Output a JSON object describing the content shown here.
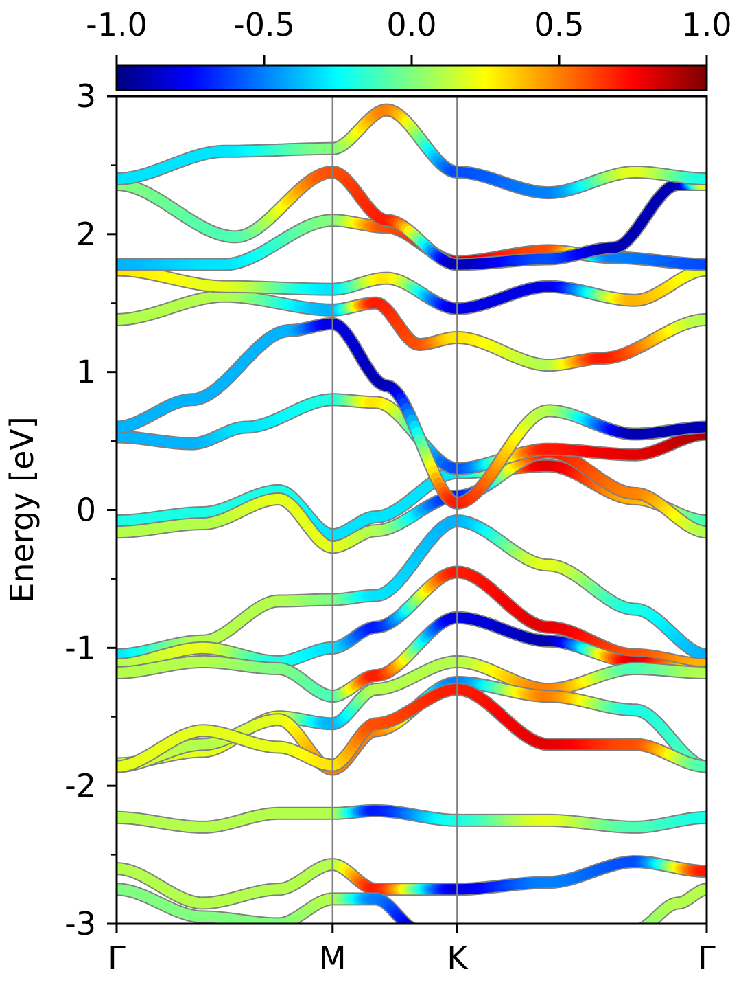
{
  "chart_data": {
    "type": "line",
    "title": "",
    "xlabel": "",
    "ylabel": "Energy [eV]",
    "ylim": [
      -3,
      3
    ],
    "x_ticks": [
      {
        "label": "Γ",
        "k": 0.0
      },
      {
        "label": "M",
        "k": 1.0
      },
      {
        "label": "K",
        "k": 1.577
      },
      {
        "label": "Γ",
        "k": 2.732
      }
    ],
    "y_ticks": [
      {
        "value": 3,
        "label": "3"
      },
      {
        "value": 2,
        "label": "2"
      },
      {
        "value": 1,
        "label": "1"
      },
      {
        "value": 0,
        "label": "0"
      },
      {
        "value": -1,
        "label": "-1"
      },
      {
        "value": -2,
        "label": "-2"
      },
      {
        "value": -3,
        "label": "-3"
      }
    ],
    "y_minor_ticks": [
      2.5,
      1.5,
      0.5,
      -0.5,
      -1.5,
      -2.5
    ],
    "colorbar": {
      "colormap": "jet",
      "range": [
        -1.0,
        1.0
      ],
      "ticks": [
        {
          "value": -1.0,
          "label": "-1.0"
        },
        {
          "value": -0.5,
          "label": "-0.5"
        },
        {
          "value": 0.0,
          "label": "0.0"
        },
        {
          "value": 0.5,
          "label": "0.5"
        },
        {
          "value": 1.0,
          "label": "1.0"
        }
      ]
    },
    "bands": [
      {
        "k": [
          0,
          0.4,
          0.75,
          1.0,
          1.2,
          1.577,
          2.0,
          2.4,
          2.732
        ],
        "E": [
          -0.08,
          -0.02,
          0.14,
          -0.18,
          -0.05,
          0.27,
          0.32,
          0.08,
          -0.08
        ],
        "c": [
          -0.2,
          -0.2,
          -0.2,
          -0.3,
          -0.3,
          -0.3,
          0.8,
          0.4,
          -0.1
        ]
      },
      {
        "k": [
          0,
          0.4,
          0.75,
          1.0,
          1.2,
          1.577,
          2.0,
          2.4,
          2.732
        ],
        "E": [
          -0.16,
          -0.1,
          0.08,
          -0.27,
          -0.15,
          0.1,
          0.42,
          0.12,
          -0.16
        ],
        "c": [
          0.1,
          0.1,
          0.2,
          0.2,
          0.1,
          -0.7,
          0.7,
          0.5,
          0.1
        ]
      },
      {
        "k": [
          0,
          0.35,
          0.6,
          1.0,
          1.2,
          1.577,
          2.0,
          2.4,
          2.732
        ],
        "E": [
          0.53,
          0.48,
          0.6,
          0.8,
          0.78,
          0.3,
          0.44,
          0.4,
          0.55
        ],
        "c": [
          -0.4,
          -0.4,
          -0.3,
          -0.2,
          0.3,
          -0.6,
          0.7,
          0.8,
          0.9
        ]
      },
      {
        "k": [
          0,
          0.35,
          0.8,
          1.0,
          1.25,
          1.577,
          2.0,
          2.4,
          2.732
        ],
        "E": [
          0.6,
          0.8,
          1.3,
          1.35,
          0.9,
          0.05,
          0.72,
          0.55,
          0.6
        ],
        "c": [
          -0.4,
          -0.4,
          -0.4,
          -0.8,
          -0.9,
          0.7,
          0.1,
          -0.9,
          -0.9
        ]
      },
      {
        "k": [
          0,
          0.5,
          1.0,
          1.2,
          1.4,
          1.577,
          2.0,
          2.25,
          2.732
        ],
        "E": [
          1.38,
          1.55,
          1.45,
          1.5,
          1.2,
          1.25,
          1.05,
          1.1,
          1.38
        ],
        "c": [
          0.1,
          0.1,
          -0.4,
          0.7,
          0.6,
          0.3,
          0.1,
          0.7,
          0.1
        ]
      },
      {
        "k": [
          0,
          0.5,
          1.0,
          1.25,
          1.577,
          2.0,
          2.4,
          2.732
        ],
        "E": [
          1.74,
          1.62,
          1.6,
          1.68,
          1.46,
          1.62,
          1.52,
          1.74
        ],
        "c": [
          0.3,
          0.2,
          -0.3,
          0.3,
          -0.8,
          -0.8,
          0.4,
          0.2
        ]
      },
      {
        "k": [
          0,
          0.5,
          1.0,
          1.25,
          1.577,
          2.0,
          2.3,
          2.732
        ],
        "E": [
          1.78,
          1.78,
          2.1,
          2.05,
          1.8,
          1.88,
          1.83,
          1.78
        ],
        "c": [
          -0.4,
          -0.3,
          0.0,
          0.6,
          0.8,
          0.6,
          -0.5,
          -0.6
        ]
      },
      {
        "k": [
          0,
          0.55,
          1.0,
          1.25,
          1.577,
          2.0,
          2.3,
          2.6,
          2.732
        ],
        "E": [
          2.36,
          1.98,
          2.45,
          2.1,
          1.78,
          1.82,
          1.9,
          2.36,
          2.36
        ],
        "c": [
          0.0,
          -0.1,
          0.6,
          0.7,
          -0.9,
          -0.6,
          -0.9,
          -0.9,
          0.2
        ]
      },
      {
        "k": [
          0,
          0.5,
          1.0,
          1.25,
          1.577,
          2.0,
          2.4,
          2.732
        ],
        "E": [
          2.4,
          2.6,
          2.62,
          2.9,
          2.45,
          2.3,
          2.45,
          2.4
        ],
        "c": [
          -0.3,
          -0.3,
          0.0,
          0.5,
          -0.6,
          -0.5,
          0.2,
          -0.2
        ]
      },
      {
        "k": [
          0,
          0.4,
          0.75,
          1.0,
          1.2,
          1.577,
          2.0,
          2.4,
          2.732
        ],
        "E": [
          -1.05,
          -0.95,
          -0.66,
          -0.65,
          -0.62,
          -0.08,
          -0.4,
          -0.72,
          -1.05
        ],
        "c": [
          -0.3,
          0.1,
          0.1,
          0.0,
          -0.3,
          -0.4,
          0.2,
          -0.2,
          -0.4
        ]
      },
      {
        "k": [
          0,
          0.4,
          0.75,
          1.0,
          1.2,
          1.577,
          2.0,
          2.4,
          2.732
        ],
        "E": [
          -1.12,
          -1.0,
          -1.1,
          -1.0,
          -0.85,
          -0.45,
          -0.85,
          -1.05,
          -1.12
        ],
        "c": [
          0.1,
          0.2,
          -0.2,
          -0.3,
          -0.7,
          0.7,
          0.8,
          0.6,
          0.4
        ]
      },
      {
        "k": [
          0,
          0.4,
          0.75,
          1.0,
          1.2,
          1.577,
          2.0,
          2.4,
          2.732
        ],
        "E": [
          -1.18,
          -1.1,
          -1.15,
          -1.35,
          -1.2,
          -0.78,
          -0.95,
          -1.1,
          -1.18
        ],
        "c": [
          0.1,
          0.1,
          0.0,
          -0.1,
          0.7,
          -0.8,
          -0.9,
          0.8,
          0.2
        ]
      },
      {
        "k": [
          0,
          0.4,
          0.75,
          1.0,
          1.2,
          1.577,
          2.0,
          2.4,
          2.732
        ],
        "E": [
          -1.84,
          -1.75,
          -1.5,
          -1.55,
          -1.3,
          -1.1,
          -1.3,
          -1.15,
          -1.18
        ],
        "c": [
          0.1,
          0.2,
          0.2,
          -0.4,
          0.1,
          0.1,
          0.5,
          -0.1,
          0.1
        ]
      },
      {
        "k": [
          0,
          0.4,
          0.75,
          1.0,
          1.2,
          1.577,
          2.0,
          2.4,
          2.732
        ],
        "E": [
          -1.86,
          -1.7,
          -1.52,
          -1.88,
          -1.6,
          -1.25,
          -1.35,
          -1.45,
          -1.86
        ],
        "c": [
          0.2,
          0.1,
          0.2,
          0.5,
          0.5,
          -0.5,
          0.5,
          -0.2,
          -0.1
        ]
      },
      {
        "k": [
          0,
          0.4,
          0.75,
          1.0,
          1.2,
          1.577,
          2.0,
          2.4,
          2.732
        ],
        "E": [
          -1.86,
          -1.6,
          -1.72,
          -1.85,
          -1.55,
          -1.3,
          -1.7,
          -1.7,
          -1.86
        ],
        "c": [
          0.2,
          0.2,
          0.2,
          0.3,
          0.6,
          0.7,
          0.8,
          0.6,
          -0.1
        ]
      },
      {
        "k": [
          0,
          0.4,
          0.75,
          1.0,
          1.2,
          1.577,
          2.0,
          2.4,
          2.732
        ],
        "E": [
          -2.23,
          -2.3,
          -2.2,
          -2.2,
          -2.18,
          -2.25,
          -2.25,
          -2.3,
          -2.23
        ],
        "c": [
          0.1,
          0.1,
          0.1,
          0.1,
          -0.7,
          -0.2,
          0.2,
          -0.1,
          -0.2
        ]
      },
      {
        "k": [
          0,
          0.4,
          0.75,
          1.0,
          1.2,
          1.577,
          2.0,
          2.4,
          2.732
        ],
        "E": [
          -2.6,
          -2.85,
          -2.75,
          -2.57,
          -2.75,
          -2.75,
          -2.7,
          -2.55,
          -2.62
        ],
        "c": [
          0.1,
          0.1,
          0.1,
          0.1,
          0.7,
          -0.8,
          -0.5,
          -0.6,
          0.7
        ]
      },
      {
        "k": [
          0,
          0.4,
          0.75,
          1.0,
          1.2,
          1.4
        ],
        "E": [
          -2.75,
          -2.95,
          -3.0,
          -2.82,
          -2.82,
          -3.05
        ],
        "c": [
          0.0,
          0.0,
          0.0,
          0.1,
          -0.5,
          -0.8
        ]
      },
      {
        "k": [
          2.4,
          2.6,
          2.732
        ],
        "E": [
          -3.05,
          -2.85,
          -2.75
        ],
        "c": [
          0.0,
          0.1,
          0.1
        ]
      }
    ]
  }
}
